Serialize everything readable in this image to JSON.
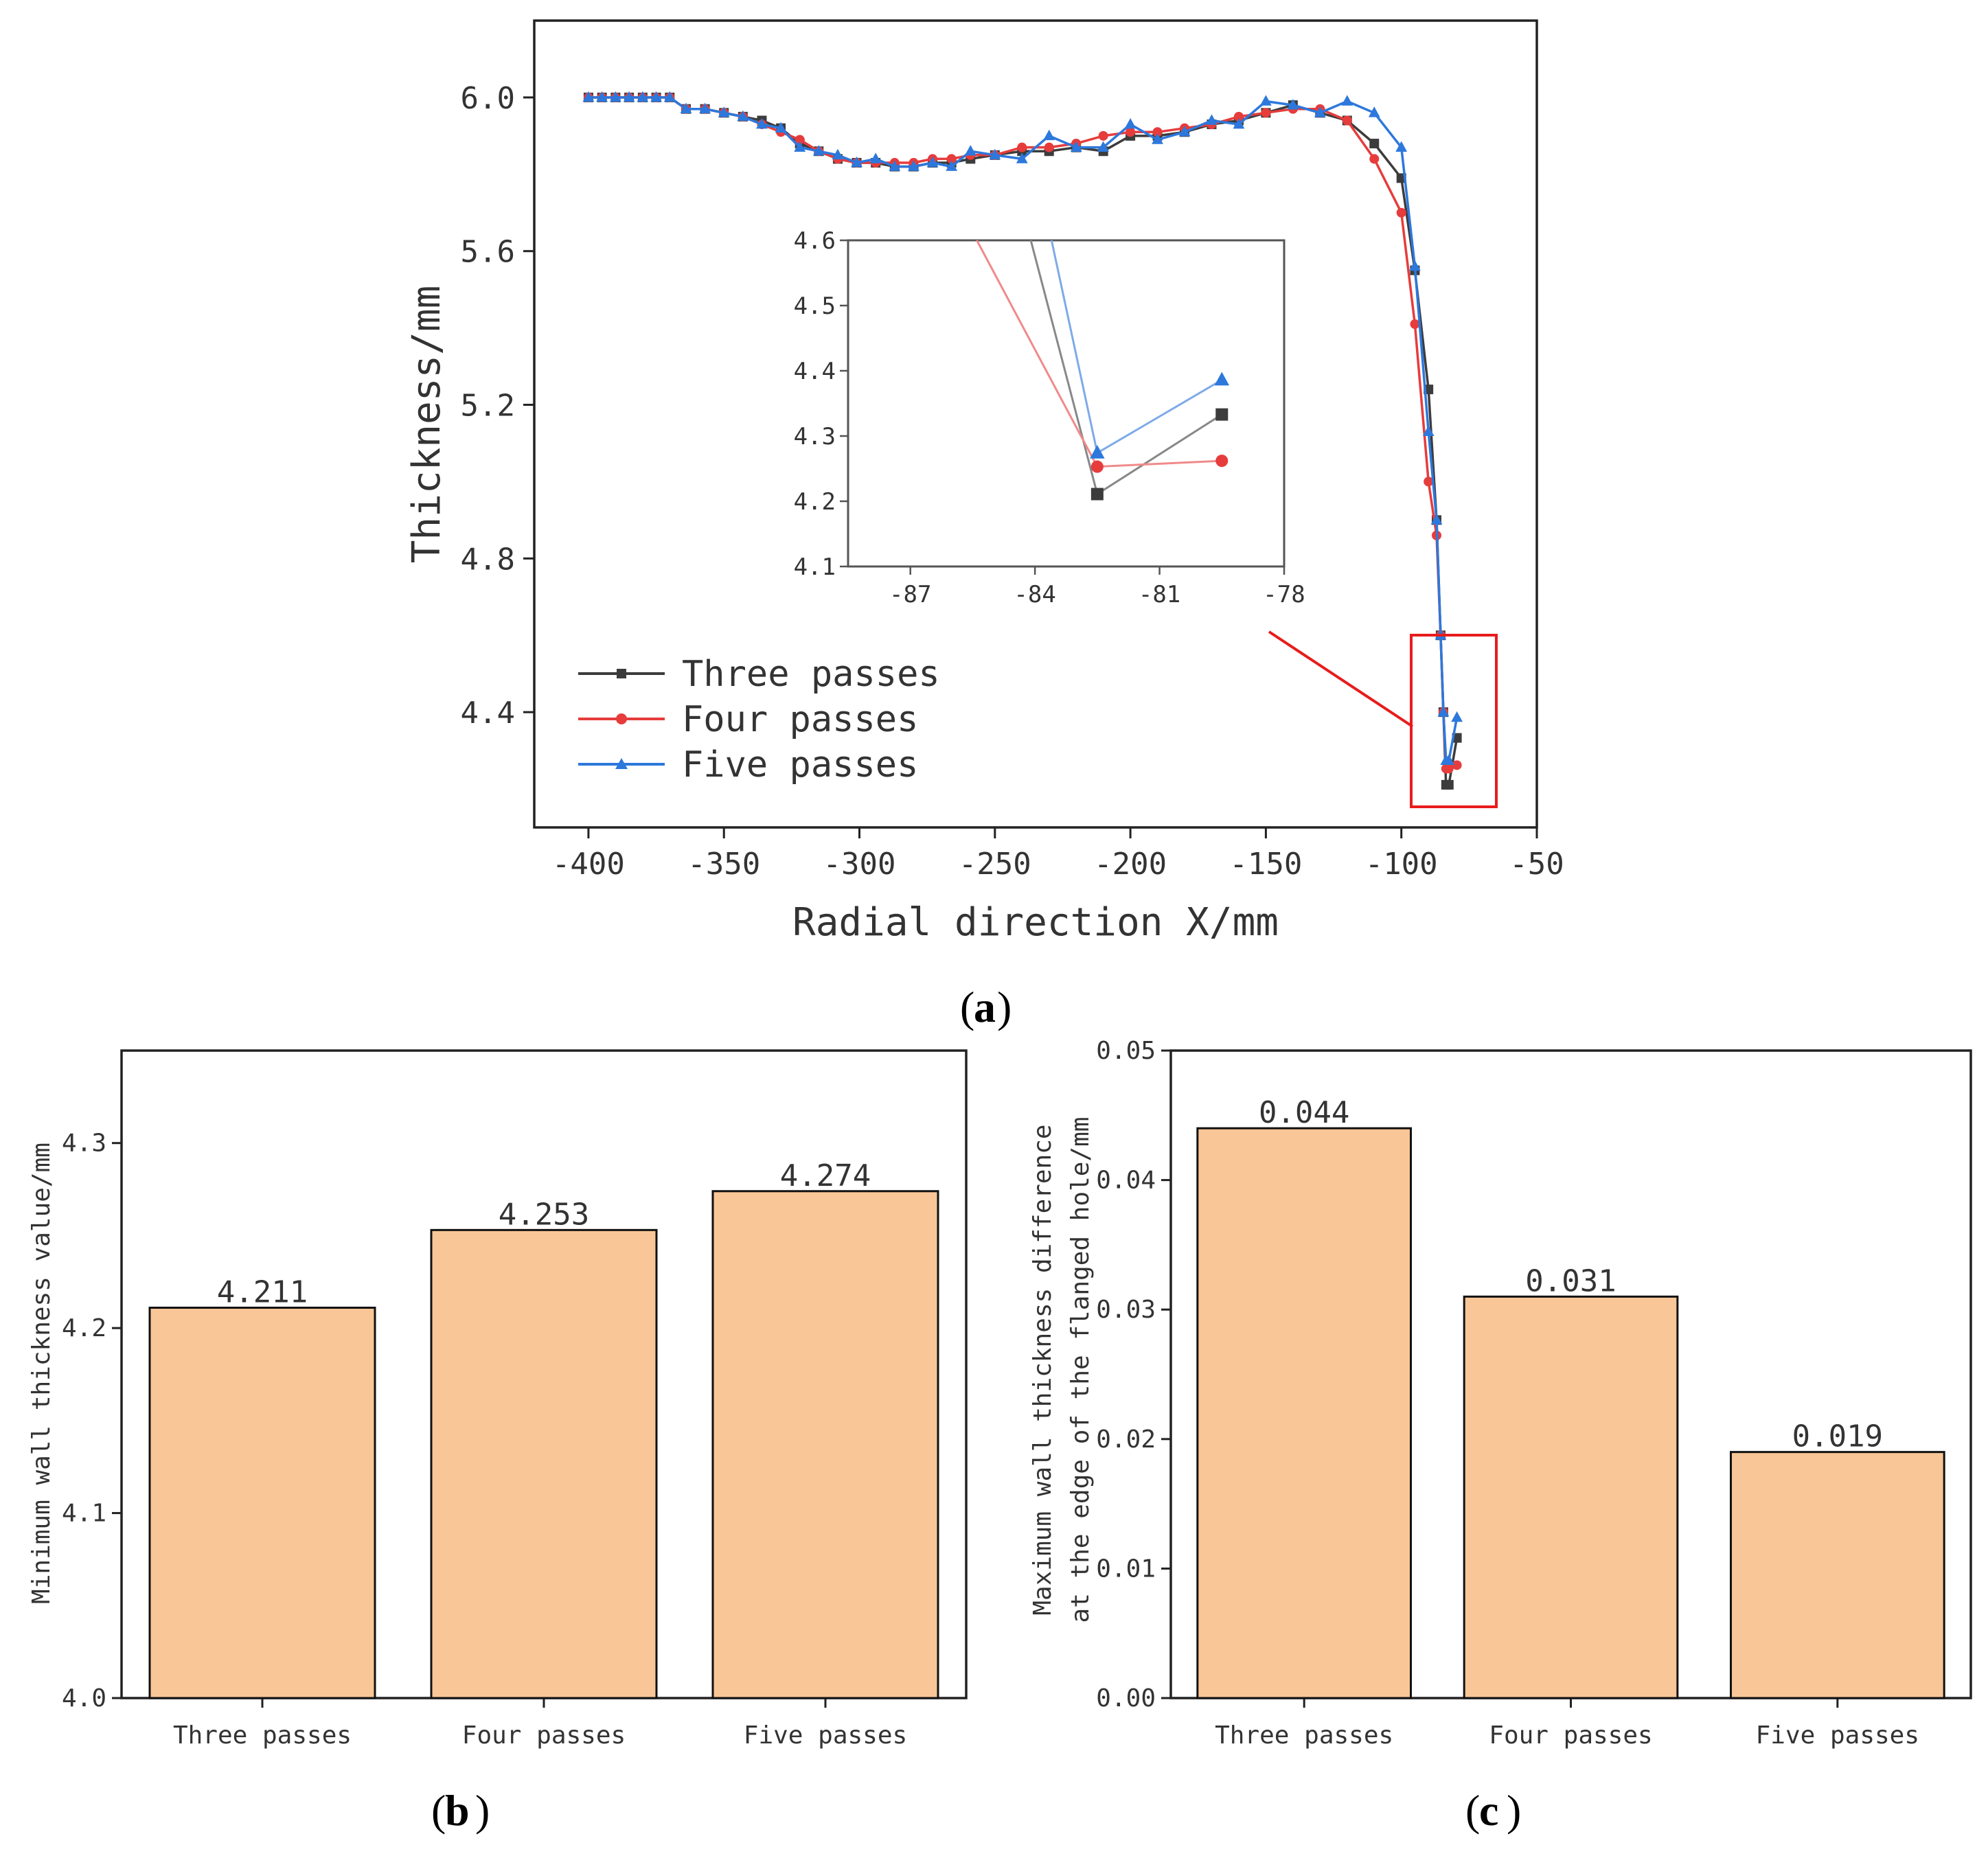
{
  "panel_labels": {
    "a": "a",
    "b": "b",
    "c": "c"
  },
  "colors": {
    "three": "#3c3c3c",
    "four": "#e63c3c",
    "five": "#2d78dc",
    "bar_fill": "#f9c697",
    "zoom_box": "#e81c1c"
  },
  "chart_data": [
    {
      "id": "a",
      "type": "line",
      "xlabel": "Radial direction X/mm",
      "ylabel": "Thickness/mm",
      "xlim": [
        -420,
        -50
      ],
      "ylim": [
        4.1,
        6.2
      ],
      "xticks": [
        -400,
        -350,
        -300,
        -250,
        -200,
        -150,
        -100,
        -50
      ],
      "yticks": [
        4.4,
        4.8,
        5.2,
        5.6,
        6.0
      ],
      "xtick_labels": [
        "-400",
        "-350",
        "-300",
        "-250",
        "-200",
        "-150",
        "-100",
        "-50"
      ],
      "ytick_labels": [
        "4.4",
        "4.8",
        "5.2",
        "5.6",
        "6.0"
      ],
      "legend": {
        "position": "bottom-left",
        "entries": [
          "Three passes",
          "Four passes",
          "Five passes"
        ]
      },
      "series": [
        {
          "name": "Three passes",
          "marker": "square",
          "x": [
            -400,
            -395,
            -390,
            -385,
            -380,
            -375,
            -370,
            -364,
            -357,
            -350,
            -343,
            -336,
            -329,
            -322,
            -315,
            -308,
            -301,
            -294,
            -287,
            -280,
            -273,
            -266,
            -259,
            -250,
            -240,
            -230,
            -220,
            -210,
            -200,
            -190,
            -180,
            -170,
            -160,
            -150,
            -140,
            -130,
            -120,
            -110,
            -100,
            -95,
            -90,
            -87,
            -85.5,
            -84.5,
            -83.5,
            -82.5,
            -79.5
          ],
          "y": [
            6.0,
            6.0,
            6.0,
            6.0,
            6.0,
            6.0,
            6.0,
            5.97,
            5.97,
            5.96,
            5.95,
            5.94,
            5.92,
            5.88,
            5.86,
            5.84,
            5.83,
            5.83,
            5.82,
            5.82,
            5.83,
            5.83,
            5.84,
            5.85,
            5.86,
            5.86,
            5.87,
            5.86,
            5.9,
            5.9,
            5.91,
            5.93,
            5.94,
            5.96,
            5.98,
            5.96,
            5.94,
            5.88,
            5.79,
            5.55,
            5.24,
            4.9,
            4.6,
            4.4,
            4.211,
            4.211,
            4.333
          ]
        },
        {
          "name": "Four passes",
          "marker": "circle",
          "x": [
            -400,
            -395,
            -390,
            -385,
            -380,
            -375,
            -370,
            -364,
            -357,
            -350,
            -343,
            -336,
            -329,
            -322,
            -315,
            -308,
            -301,
            -294,
            -287,
            -280,
            -273,
            -266,
            -259,
            -250,
            -240,
            -230,
            -220,
            -210,
            -200,
            -190,
            -180,
            -170,
            -160,
            -150,
            -140,
            -130,
            -120,
            -110,
            -100,
            -95,
            -90,
            -87,
            -85.5,
            -84.5,
            -83.5,
            -82.5,
            -79.5
          ],
          "y": [
            6.0,
            6.0,
            6.0,
            6.0,
            6.0,
            6.0,
            6.0,
            5.97,
            5.97,
            5.96,
            5.95,
            5.93,
            5.91,
            5.89,
            5.86,
            5.84,
            5.83,
            5.83,
            5.83,
            5.83,
            5.84,
            5.84,
            5.85,
            5.85,
            5.87,
            5.87,
            5.88,
            5.9,
            5.91,
            5.91,
            5.92,
            5.93,
            5.95,
            5.96,
            5.97,
            5.97,
            5.94,
            5.84,
            5.7,
            5.41,
            5.0,
            4.86,
            4.6,
            4.4,
            4.253,
            4.253,
            4.262
          ]
        },
        {
          "name": "Five passes",
          "marker": "triangle",
          "x": [
            -400,
            -395,
            -390,
            -385,
            -380,
            -375,
            -370,
            -364,
            -357,
            -350,
            -343,
            -336,
            -329,
            -322,
            -315,
            -308,
            -301,
            -294,
            -287,
            -280,
            -273,
            -266,
            -259,
            -250,
            -240,
            -230,
            -220,
            -210,
            -200,
            -190,
            -180,
            -170,
            -160,
            -150,
            -140,
            -130,
            -120,
            -110,
            -100,
            -95,
            -90,
            -87,
            -85.5,
            -84.5,
            -83.5,
            -82.5,
            -79.5
          ],
          "y": [
            6.0,
            6.0,
            6.0,
            6.0,
            6.0,
            6.0,
            6.0,
            5.97,
            5.97,
            5.96,
            5.95,
            5.93,
            5.92,
            5.87,
            5.86,
            5.85,
            5.83,
            5.84,
            5.82,
            5.82,
            5.83,
            5.82,
            5.86,
            5.85,
            5.84,
            5.9,
            5.87,
            5.87,
            5.93,
            5.89,
            5.91,
            5.94,
            5.93,
            5.99,
            5.98,
            5.96,
            5.99,
            5.96,
            5.87,
            5.56,
            5.13,
            4.9,
            4.6,
            4.4,
            4.274,
            4.274,
            4.386
          ]
        }
      ],
      "inset": {
        "xlim": [
          -88.5,
          -78
        ],
        "ylim": [
          4.1,
          4.6
        ],
        "xticks": [
          -87,
          -84,
          -81,
          -78
        ],
        "yticks": [
          4.1,
          4.2,
          4.3,
          4.4,
          4.5,
          4.6
        ],
        "xtick_labels": [
          "-87",
          "-84",
          "-81",
          "-78"
        ],
        "ytick_labels": [
          "4.1",
          "4.2",
          "4.3",
          "4.4",
          "4.5",
          "4.6"
        ],
        "series": [
          {
            "name": "Three passes",
            "x": [
              -84.1,
              -82.5,
              -79.5
            ],
            "y": [
              4.6,
              4.211,
              4.333
            ]
          },
          {
            "name": "Four passes",
            "x": [
              -85.4,
              -82.5,
              -79.5
            ],
            "y": [
              4.6,
              4.253,
              4.262
            ]
          },
          {
            "name": "Five passes",
            "x": [
              -83.6,
              -82.5,
              -79.5
            ],
            "y": [
              4.6,
              4.274,
              4.386
            ]
          }
        ]
      }
    },
    {
      "id": "b",
      "type": "bar",
      "categories": [
        "Three passes",
        "Four passes",
        "Five passes"
      ],
      "values": [
        4.211,
        4.253,
        4.274
      ],
      "value_labels": [
        "4.211",
        "4.253",
        "4.274"
      ],
      "ylabel": "Minimum wall thickness value/mm",
      "xlabel": "",
      "ylim": [
        4.0,
        4.35
      ],
      "yticks": [
        4.0,
        4.1,
        4.2,
        4.3
      ],
      "ytick_labels": [
        "4.0",
        "4.1",
        "4.2",
        "4.3"
      ]
    },
    {
      "id": "c",
      "type": "bar",
      "categories": [
        "Three passes",
        "Four passes",
        "Five passes"
      ],
      "values": [
        0.044,
        0.031,
        0.019
      ],
      "value_labels": [
        "0.044",
        "0.031",
        "0.019"
      ],
      "ylabel_lines": [
        "Maximum wall thickness difference",
        "at the edge of the flanged hole/mm"
      ],
      "xlabel": "",
      "ylim": [
        0.0,
        0.05
      ],
      "yticks": [
        0.0,
        0.01,
        0.02,
        0.03,
        0.04,
        0.05
      ],
      "ytick_labels": [
        "0.00",
        "0.01",
        "0.02",
        "0.03",
        "0.04",
        "0.05"
      ]
    }
  ]
}
